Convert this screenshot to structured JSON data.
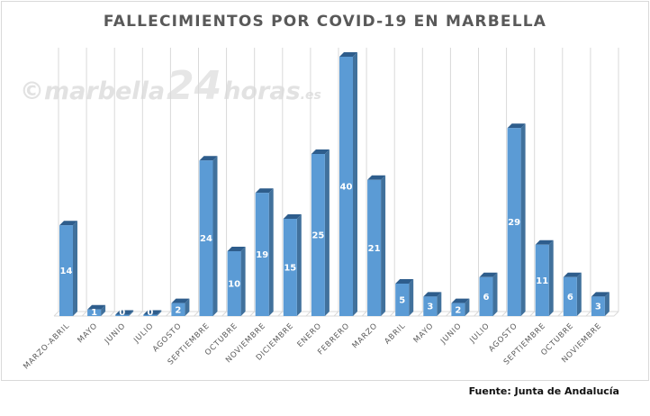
{
  "watermark": {
    "prefix": "©marbella",
    "number": "24",
    "suffix": "horas",
    "domain": ".es"
  },
  "source": "Fuente: Junta de Andalucía",
  "colors": {
    "bar_front": "#5b9bd5",
    "bar_side": "#41719c",
    "bar_top": "#2e5d8c",
    "title": "#595959",
    "grid": "#d9d9d9"
  },
  "chart_data": {
    "type": "bar",
    "title": "FALLECIMIENTOS POR COVID-19 EN MARBELLA",
    "xlabel": "",
    "ylabel": "",
    "ylim": [
      0,
      40
    ],
    "grid": true,
    "legend": "none",
    "categories": [
      "MARZO-ABRIL",
      "MAYO",
      "JUNIO",
      "JULIO",
      "AGOSTO",
      "SEPTIEMBRE",
      "OCTUBRE",
      "NOVIEMBRE",
      "DICIEMBRE",
      "ENERO",
      "FEBRERO",
      "MARZO",
      "ABRIL",
      "MAYO",
      "JUNIO",
      "JULIO",
      "AGOSTO",
      "SEPTIEMBRE",
      "OCTUBRE",
      "NOVIEMBRE"
    ],
    "values": [
      14,
      1,
      0,
      0,
      2,
      24,
      10,
      19,
      15,
      25,
      40,
      21,
      5,
      3,
      2,
      6,
      29,
      11,
      6,
      3
    ]
  }
}
